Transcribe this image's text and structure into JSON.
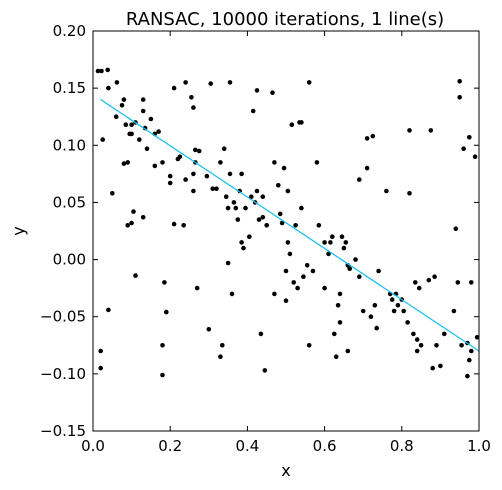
{
  "chart_data": {
    "type": "scatter",
    "title": "RANSAC,  10000 iterations, 1 line(s)",
    "xlabel": "x",
    "ylabel": "y",
    "xlim": [
      0.0,
      1.0
    ],
    "ylim": [
      -0.15,
      0.2
    ],
    "xticks": [
      "0.0",
      "0.2",
      "0.4",
      "0.6",
      "0.8",
      "1.0"
    ],
    "yticks": [
      "−0.15",
      "−0.10",
      "−0.05",
      "0.00",
      "0.05",
      "0.10",
      "0.15",
      "0.20"
    ],
    "grid": false,
    "points_color": "#000000",
    "line_color": "#1ec0ef",
    "line": {
      "x": [
        0.02,
        1.0
      ],
      "y": [
        0.14,
        -0.08
      ]
    },
    "points": [
      [
        0.013,
        0.165
      ],
      [
        0.022,
        0.165
      ],
      [
        0.038,
        0.166
      ],
      [
        0.062,
        0.155
      ],
      [
        0.04,
        0.15
      ],
      [
        0.025,
        0.105
      ],
      [
        0.02,
        -0.08
      ],
      [
        0.02,
        -0.095
      ],
      [
        0.04,
        -0.044
      ],
      [
        0.05,
        0.058
      ],
      [
        0.06,
        0.125
      ],
      [
        0.08,
        0.14
      ],
      [
        0.075,
        0.135
      ],
      [
        0.085,
        0.118
      ],
      [
        0.08,
        0.084
      ],
      [
        0.09,
        0.085
      ],
      [
        0.09,
        0.03
      ],
      [
        0.095,
        0.11
      ],
      [
        0.1,
        0.11
      ],
      [
        0.1,
        0.118
      ],
      [
        0.1,
        0.032
      ],
      [
        0.105,
        0.042
      ],
      [
        0.11,
        0.12
      ],
      [
        0.11,
        -0.014
      ],
      [
        0.12,
        0.105
      ],
      [
        0.13,
        0.14
      ],
      [
        0.13,
        0.13
      ],
      [
        0.13,
        0.037
      ],
      [
        0.135,
        0.115
      ],
      [
        0.14,
        0.097
      ],
      [
        0.15,
        0.123
      ],
      [
        0.16,
        0.11
      ],
      [
        0.16,
        0.082
      ],
      [
        0.17,
        0.112
      ],
      [
        0.18,
        0.085
      ],
      [
        0.18,
        -0.075
      ],
      [
        0.18,
        -0.101
      ],
      [
        0.185,
        -0.02
      ],
      [
        0.19,
        -0.046
      ],
      [
        0.2,
        0.073
      ],
      [
        0.2,
        0.067
      ],
      [
        0.21,
        0.031
      ],
      [
        0.21,
        0.15
      ],
      [
        0.22,
        0.088
      ],
      [
        0.225,
        0.09
      ],
      [
        0.235,
        0.03
      ],
      [
        0.24,
        0.07
      ],
      [
        0.24,
        0.155
      ],
      [
        0.255,
        0.142
      ],
      [
        0.26,
        0.133
      ],
      [
        0.265,
        0.096
      ],
      [
        0.265,
        0.085
      ],
      [
        0.27,
        -0.025
      ],
      [
        0.275,
        0.095
      ],
      [
        0.26,
        0.075
      ],
      [
        0.26,
        0.06
      ],
      [
        0.295,
        0.073
      ],
      [
        0.3,
        -0.061
      ],
      [
        0.305,
        0.154
      ],
      [
        0.31,
        0.062
      ],
      [
        0.32,
        0.062
      ],
      [
        0.33,
        0.085
      ],
      [
        0.33,
        -0.085
      ],
      [
        0.335,
        -0.075
      ],
      [
        0.34,
        0.097
      ],
      [
        0.345,
        0.055
      ],
      [
        0.35,
        -0.003
      ],
      [
        0.35,
        0.045
      ],
      [
        0.355,
        0.075
      ],
      [
        0.355,
        0.155
      ],
      [
        0.365,
        0.05
      ],
      [
        0.36,
        -0.03
      ],
      [
        0.37,
        0.045
      ],
      [
        0.375,
        0.035
      ],
      [
        0.38,
        0.06
      ],
      [
        0.385,
        0.075
      ],
      [
        0.385,
        0.015
      ],
      [
        0.39,
        0.01
      ],
      [
        0.395,
        0.045
      ],
      [
        0.405,
        0.02
      ],
      [
        0.41,
        0.055
      ],
      [
        0.415,
        0.13
      ],
      [
        0.42,
        0.05
      ],
      [
        0.425,
        0.148
      ],
      [
        0.425,
        0.06
      ],
      [
        0.43,
        0.035
      ],
      [
        0.435,
        -0.065
      ],
      [
        0.44,
        0.055
      ],
      [
        0.44,
        0.037
      ],
      [
        0.445,
        -0.097
      ],
      [
        0.45,
        0.03
      ],
      [
        0.465,
        0.146
      ],
      [
        0.47,
        0.085
      ],
      [
        0.47,
        -0.03
      ],
      [
        0.48,
        0.065
      ],
      [
        0.485,
        0.04
      ],
      [
        0.49,
        0.032
      ],
      [
        0.495,
        0.08
      ],
      [
        0.5,
        -0.036
      ],
      [
        0.5,
        -0.01
      ],
      [
        0.505,
        0.06
      ],
      [
        0.505,
        0.015
      ],
      [
        0.51,
        0.005
      ],
      [
        0.515,
        0.118
      ],
      [
        0.52,
        -0.02
      ],
      [
        0.525,
        0.03
      ],
      [
        0.53,
        -0.025
      ],
      [
        0.535,
        0.12
      ],
      [
        0.54,
        0.12
      ],
      [
        0.54,
        0.045
      ],
      [
        0.545,
        -0.015
      ],
      [
        0.555,
        -0.005
      ],
      [
        0.56,
        0.155
      ],
      [
        0.56,
        -0.075
      ],
      [
        0.57,
        -0.01
      ],
      [
        0.58,
        0.085
      ],
      [
        0.585,
        0.03
      ],
      [
        0.6,
        0.015
      ],
      [
        0.6,
        -0.025
      ],
      [
        0.61,
        0.005
      ],
      [
        0.615,
        0.015
      ],
      [
        0.62,
        0.02
      ],
      [
        0.625,
        -0.065
      ],
      [
        0.63,
        -0.085
      ],
      [
        0.635,
        -0.04
      ],
      [
        0.64,
        -0.03
      ],
      [
        0.64,
        -0.055
      ],
      [
        0.645,
        0.02
      ],
      [
        0.65,
        0.01
      ],
      [
        0.655,
        0.015
      ],
      [
        0.66,
        -0.005
      ],
      [
        0.66,
        -0.08
      ],
      [
        0.665,
        -0.008
      ],
      [
        0.68,
        0.0
      ],
      [
        0.69,
        -0.015
      ],
      [
        0.69,
        0.07
      ],
      [
        0.7,
        -0.045
      ],
      [
        0.71,
        0.08
      ],
      [
        0.71,
        0.106
      ],
      [
        0.72,
        -0.05
      ],
      [
        0.725,
        0.108
      ],
      [
        0.73,
        -0.04
      ],
      [
        0.735,
        -0.06
      ],
      [
        0.74,
        -0.01
      ],
      [
        0.76,
        0.06
      ],
      [
        0.77,
        -0.03
      ],
      [
        0.775,
        -0.035
      ],
      [
        0.78,
        -0.045
      ],
      [
        0.785,
        -0.03
      ],
      [
        0.79,
        -0.04
      ],
      [
        0.8,
        -0.035
      ],
      [
        0.805,
        -0.045
      ],
      [
        0.815,
        -0.055
      ],
      [
        0.82,
        0.113
      ],
      [
        0.82,
        0.058
      ],
      [
        0.83,
        -0.065
      ],
      [
        0.835,
        -0.02
      ],
      [
        0.84,
        -0.07
      ],
      [
        0.84,
        -0.08
      ],
      [
        0.845,
        -0.025
      ],
      [
        0.85,
        -0.075
      ],
      [
        0.87,
        -0.018
      ],
      [
        0.875,
        0.113
      ],
      [
        0.88,
        -0.095
      ],
      [
        0.885,
        -0.015
      ],
      [
        0.89,
        -0.075
      ],
      [
        0.9,
        -0.093
      ],
      [
        0.91,
        -0.065
      ],
      [
        0.935,
        -0.045
      ],
      [
        0.94,
        0.027
      ],
      [
        0.945,
        -0.02
      ],
      [
        0.95,
        0.142
      ],
      [
        0.95,
        0.156
      ],
      [
        0.955,
        -0.075
      ],
      [
        0.96,
        0.097
      ],
      [
        0.97,
        -0.073
      ],
      [
        0.97,
        -0.102
      ],
      [
        0.975,
        -0.088
      ],
      [
        0.975,
        0.107
      ],
      [
        0.98,
        -0.02
      ],
      [
        0.98,
        -0.08
      ],
      [
        0.99,
        0.09
      ],
      [
        0.995,
        -0.068
      ]
    ]
  }
}
